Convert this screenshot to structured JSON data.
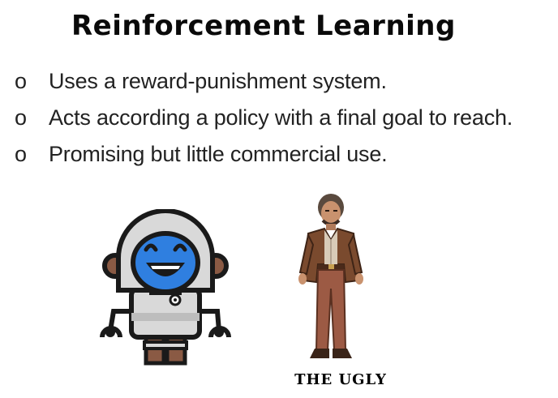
{
  "slide": {
    "title": "Reinforcement Learning",
    "bullets": [
      {
        "marker": "o",
        "text": "Uses a reward-punishment system."
      },
      {
        "marker": "o",
        "text": "Acts according a policy with a final goal to reach."
      },
      {
        "marker": "o",
        "text": "Promising but little commercial use."
      }
    ],
    "caption": "THE UGLY"
  },
  "colors": {
    "robot_face": "#2f7fe0",
    "robot_body": "#d9d9d9",
    "robot_dark": "#1a1a1a",
    "robot_accent": "#8a5a44",
    "coat": "#7a4a2e",
    "trousers": "#9c5a44"
  },
  "icons": [
    "robot-illustration",
    "cowboy-illustration"
  ]
}
